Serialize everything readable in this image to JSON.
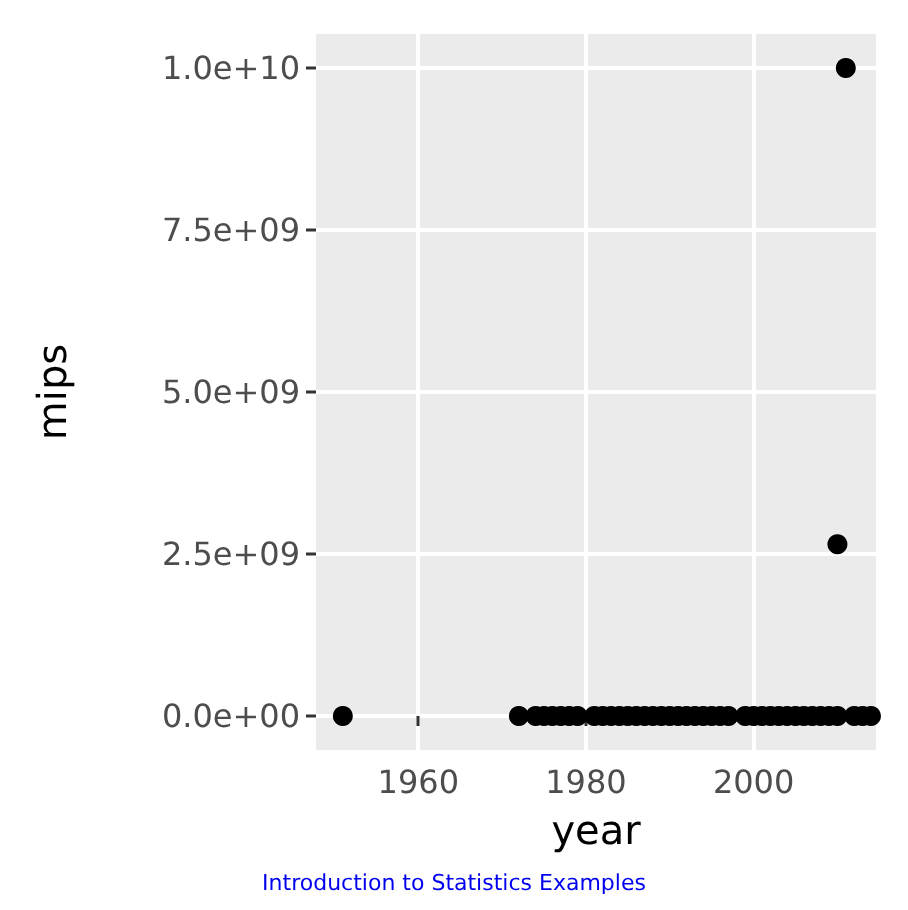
{
  "chart_data": {
    "type": "scatter",
    "xlabel": "year",
    "ylabel": "mips",
    "annotations": [
      "Introduction to Statistics Examples"
    ],
    "x": [
      1951,
      1972,
      1974,
      1975,
      1976,
      1977,
      1978,
      1979,
      1981,
      1982,
      1983,
      1984,
      1985,
      1986,
      1987,
      1988,
      1989,
      1990,
      1991,
      1992,
      1993,
      1994,
      1995,
      1996,
      1997,
      1999,
      2000,
      2001,
      2002,
      2003,
      2004,
      2005,
      2006,
      2007,
      2008,
      2009,
      2010,
      2010,
      2011,
      2012,
      2013,
      2014
    ],
    "values": [
      0,
      0,
      0,
      0,
      0,
      0,
      0,
      0,
      0,
      0,
      0,
      0,
      0,
      0,
      0,
      0,
      0,
      0,
      0,
      0,
      0,
      0,
      0,
      0,
      0,
      0,
      0,
      0,
      0,
      0,
      0,
      0,
      0,
      0,
      0,
      0,
      0,
      2650000000,
      10000000000,
      0,
      0,
      0
    ],
    "color": "#000000",
    "marker": "circle",
    "grid": true,
    "xlim": [
      1947.8,
      2014.6
    ],
    "xticks": [
      1960,
      1980,
      2000
    ],
    "ylim": [
      -525000000,
      10525000000
    ],
    "yticks": [
      {
        "value": 0,
        "label": "0.0e+00"
      },
      {
        "value": 2500000000,
        "label": "2.5e+09"
      },
      {
        "value": 5000000000,
        "label": "5.0e+09"
      },
      {
        "value": 7500000000,
        "label": "7.5e+09"
      },
      {
        "value": 10000000000,
        "label": "1.0e+10"
      }
    ]
  }
}
